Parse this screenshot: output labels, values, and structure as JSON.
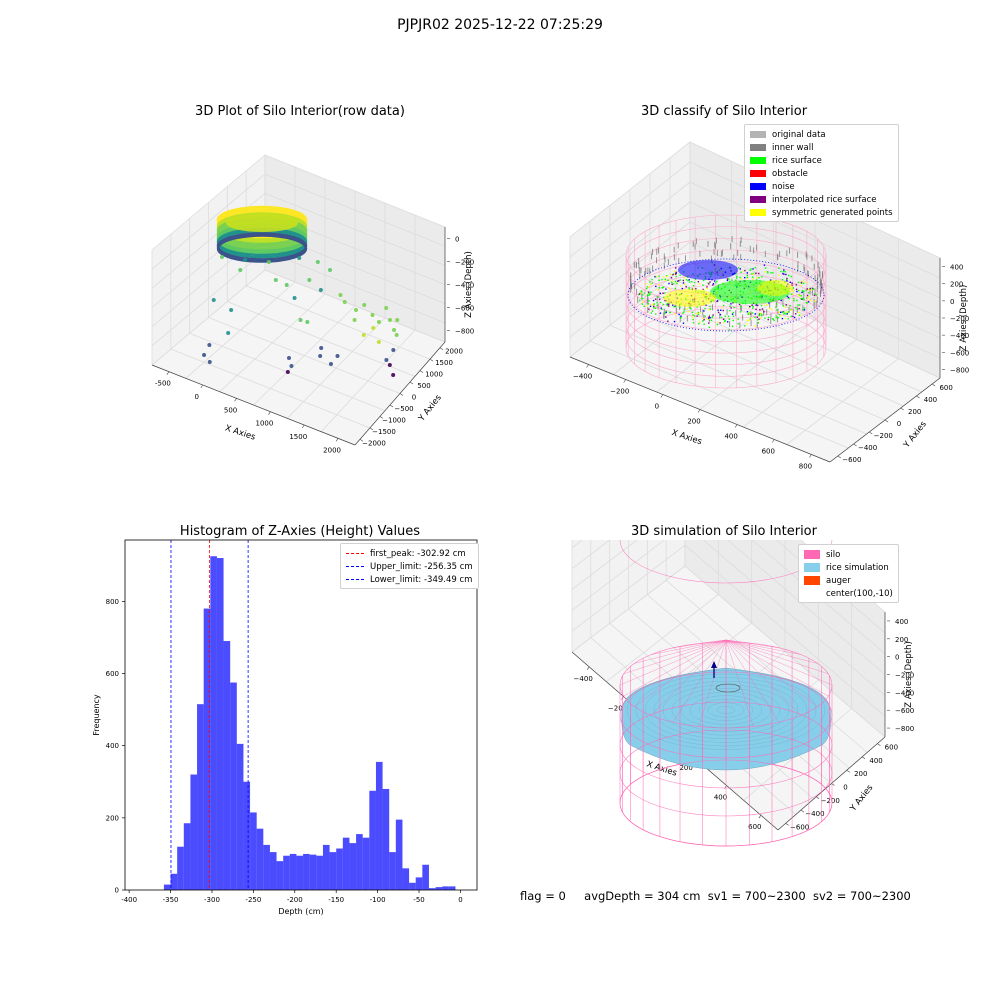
{
  "figure_title": "PJPJR02 2025-12-22 07:25:29",
  "status_line": {
    "flag": "flag = 0",
    "avg_depth": "avgDepth = 304 cm",
    "sv1": "sv1 = 700~2300",
    "sv2": "sv2 = 700~2300"
  },
  "chart_data": [
    {
      "type": "scatter",
      "projection": "3d",
      "title": "3D Plot of Silo Interior(row data)",
      "xlabel": "X Axies",
      "ylabel": "Y Axies",
      "zlabel": "Z Axies (Depth)",
      "x_ticks": [
        "-500",
        "0",
        "500",
        "1000",
        "1500",
        "2000"
      ],
      "y_ticks": [
        "2000",
        "1500",
        "1000",
        "500",
        "0",
        "−500",
        "−1000",
        "−1500",
        "−2000"
      ],
      "z_ticks": [
        "0",
        "−200",
        "−400",
        "−600",
        "−800"
      ],
      "colormap": "viridis"
    },
    {
      "type": "scatter",
      "projection": "3d",
      "title": "3D classify of Silo Interior",
      "xlabel": "X Axies",
      "ylabel": "Y Axies",
      "zlabel": "Z Axies (Depth)",
      "x_ticks": [
        "−400",
        "−200",
        "0",
        "200",
        "400",
        "600",
        "800"
      ],
      "y_ticks": [
        "600",
        "400",
        "200",
        "0",
        "−200",
        "−400",
        "−600"
      ],
      "z_ticks": [
        "400",
        "200",
        "0",
        "−200",
        "−400",
        "−600",
        "−800"
      ],
      "legend": [
        {
          "label": "original data",
          "color": "#b3b3b3"
        },
        {
          "label": "inner wall",
          "color": "#808080"
        },
        {
          "label": "rice surface",
          "color": "#00ff00"
        },
        {
          "label": "obstacle",
          "color": "#ff0000"
        },
        {
          "label": "noise",
          "color": "#0000ff"
        },
        {
          "label": "interpolated rice surface",
          "color": "#800080"
        },
        {
          "label": "symmetric generated points",
          "color": "#ffff00"
        }
      ]
    },
    {
      "type": "bar",
      "title": "Histogram of Z-Axies (Height) Values",
      "xlabel": "Depth (cm)",
      "ylabel": "Frequency",
      "xlim": [
        -405,
        20
      ],
      "ylim": [
        0,
        970
      ],
      "x_ticks": [
        -400,
        -350,
        -300,
        -250,
        -200,
        -150,
        -100,
        -50,
        0
      ],
      "y_ticks": [
        0,
        200,
        400,
        600,
        800
      ],
      "bin_edges": [
        -358,
        -350,
        -342,
        -334,
        -326,
        -318,
        -310,
        -302,
        -294,
        -286,
        -278,
        -270,
        -262,
        -254,
        -246,
        -238,
        -230,
        -222,
        -214,
        -206,
        -198,
        -190,
        -182,
        -174,
        -166,
        -158,
        -150,
        -142,
        -134,
        -126,
        -118,
        -110,
        -102,
        -94,
        -86,
        -78,
        -70,
        -62,
        -54,
        -46,
        -38,
        -30,
        -22,
        -14,
        -6
      ],
      "values": [
        15,
        45,
        120,
        185,
        320,
        515,
        780,
        925,
        920,
        690,
        575,
        405,
        300,
        215,
        170,
        125,
        105,
        80,
        95,
        100,
        95,
        100,
        98,
        95,
        125,
        105,
        115,
        145,
        130,
        155,
        145,
        275,
        355,
        280,
        105,
        195,
        60,
        20,
        35,
        70,
        5,
        8,
        10,
        10
      ],
      "bar_color": "#0000ff",
      "bar_opacity": 0.7,
      "reference_lines": [
        {
          "label": "first_peak: -302.92 cm",
          "x": -302.92,
          "color": "#ff0000"
        },
        {
          "label": "Upper_limit: -256.35 cm",
          "x": -256.35,
          "color": "#0000ff"
        },
        {
          "label": "Lower_limit: -349.49 cm",
          "x": -349.49,
          "color": "#0000ff"
        }
      ],
      "legend_position": "top-right"
    },
    {
      "type": "scatter",
      "projection": "3d",
      "title": "3D simulation of Silo Interior",
      "xlabel": "X Axies",
      "ylabel": "Y Axies",
      "zlabel": "Z Axies (Depth)",
      "x_ticks": [
        "−400",
        "−200",
        "0",
        "200",
        "400",
        "600"
      ],
      "y_ticks": [
        "600",
        "400",
        "200",
        "0",
        "−200",
        "−400",
        "−600"
      ],
      "z_ticks": [
        "400",
        "200",
        "0",
        "−200",
        "−400",
        "−600",
        "−800"
      ],
      "legend": [
        {
          "label": "silo",
          "color": "#ff69b4"
        },
        {
          "label": "rice simulation",
          "color": "#87ceeb"
        },
        {
          "label": "auger",
          "color": "#ff4500"
        },
        {
          "label": "center(100,-10)",
          "color": ""
        }
      ]
    }
  ]
}
